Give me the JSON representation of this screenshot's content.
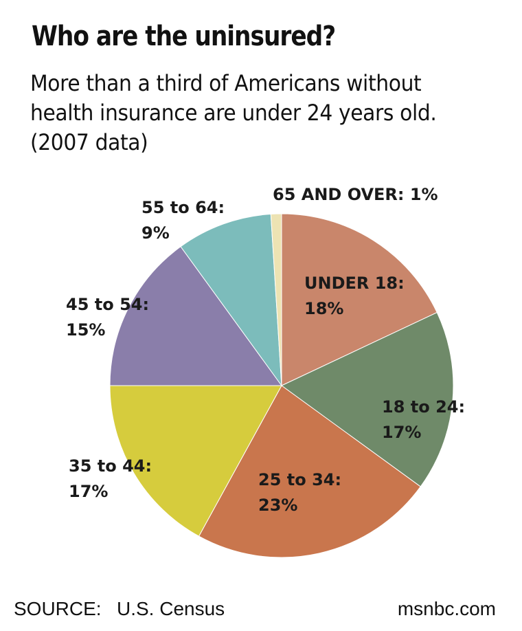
{
  "chart_data": {
    "type": "pie",
    "title": "Who are the uninsured?",
    "subtitle_lines": [
      "More than a third of Americans without",
      "health insurance are under 24 years old.",
      "(2007 data)"
    ],
    "categories": [
      "UNDER 18",
      "18 to 24",
      "25 to 34",
      "35 to 44",
      "45 to 54",
      "55 to 64",
      "65 AND OVER"
    ],
    "values": [
      18,
      17,
      23,
      17,
      15,
      9,
      1
    ],
    "labels": [
      {
        "name": "UNDER 18:",
        "pct": "18%"
      },
      {
        "name": "18 to 24:",
        "pct": "17%"
      },
      {
        "name": "25 to 34:",
        "pct": "23%"
      },
      {
        "name": "35 to 44:",
        "pct": "17%"
      },
      {
        "name": "45 to 54:",
        "pct": "15%"
      },
      {
        "name": "55 to 64:",
        "pct": "9%"
      },
      {
        "name": "65 AND OVER: 1%",
        "pct": ""
      }
    ],
    "colors": [
      "#c9866b",
      "#6f8a69",
      "#c9764d",
      "#d6cc3d",
      "#8a7eaa",
      "#7cbcbb",
      "#ede3b3"
    ]
  },
  "footer": {
    "source_label": "SOURCE:",
    "source_text": "U.S. Census",
    "credit": "msnbc.com"
  }
}
